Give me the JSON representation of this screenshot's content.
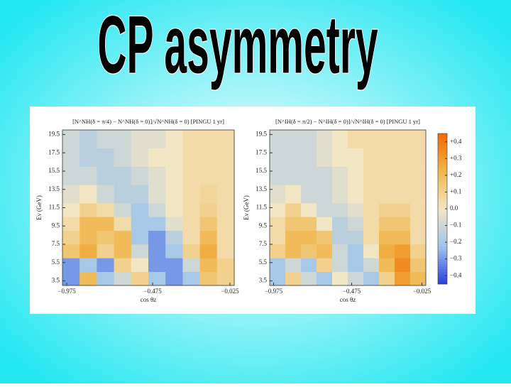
{
  "slide_title": "CP asymmetry",
  "chart_data": [
    {
      "type": "heatmap",
      "title": "[N^NH(δ = π/4) − N^NH(δ = 0)]/√N^NH(δ = 0)  [PINGU 1 yr]",
      "xlabel": "cos θz",
      "ylabel": "Eν (GeV)",
      "xlim": [
        -1,
        0
      ],
      "ylim": [
        3,
        20
      ],
      "xticks": [
        {
          "value": -0.975,
          "label": "−0.975"
        },
        {
          "value": -0.475,
          "label": "−0.475"
        },
        {
          "value": -0.025,
          "label": "−0.025"
        }
      ],
      "yticks": [
        3.5,
        5.5,
        7.5,
        9.5,
        11.5,
        13.5,
        15.5,
        17.5,
        19.5
      ],
      "xbins": [
        -1,
        -0.9,
        -0.8,
        -0.7,
        -0.6,
        -0.5,
        -0.4,
        -0.3,
        -0.2,
        -0.1,
        0
      ],
      "ybins": [
        3,
        4.5,
        6,
        7.5,
        9,
        10.5,
        12,
        14,
        16,
        18,
        20
      ],
      "z": [
        [
          -0.3,
          0.2,
          -0.2,
          -0.1,
          0.1,
          -0.2,
          -0.3,
          -0.2,
          0.15,
          0.1
        ],
        [
          -0.3,
          -0.2,
          -0.3,
          0.1,
          0.0,
          -0.3,
          -0.3,
          -0.1,
          0.2,
          0.1
        ],
        [
          0.15,
          0.25,
          0.1,
          0.2,
          -0.1,
          -0.3,
          -0.2,
          0.1,
          0.25,
          0.05
        ],
        [
          0.1,
          0.2,
          0.15,
          0.2,
          -0.2,
          -0.3,
          -0.15,
          0.05,
          0.2,
          0.05
        ],
        [
          0.05,
          0.2,
          0.2,
          0.05,
          -0.2,
          -0.2,
          -0.05,
          0.05,
          0.15,
          0.05
        ],
        [
          0.0,
          0.1,
          0.05,
          -0.1,
          -0.2,
          -0.1,
          0.0,
          0.05,
          0.1,
          0.05
        ],
        [
          -0.05,
          0.0,
          -0.1,
          -0.15,
          -0.15,
          -0.05,
          0.0,
          0.05,
          0.08,
          0.05
        ],
        [
          -0.1,
          -0.1,
          -0.15,
          -0.15,
          -0.1,
          -0.05,
          0.0,
          0.05,
          0.05,
          0.05
        ],
        [
          -0.1,
          -0.15,
          -0.15,
          -0.1,
          -0.05,
          0.0,
          0.0,
          0.05,
          0.05,
          0.05
        ],
        [
          -0.1,
          -0.15,
          -0.1,
          -0.1,
          -0.05,
          -0.05,
          0.0,
          0.05,
          0.05,
          0.05
        ]
      ]
    },
    {
      "type": "heatmap",
      "title": "[N^IH(δ = π/2) − N^IH(δ = 0)]/√N^IH(δ = 0)  [PINGU 1 yr]",
      "xlabel": "cos θz",
      "ylabel": "Eν (GeV)",
      "xlim": [
        -1,
        0
      ],
      "ylim": [
        3,
        20
      ],
      "xticks": [
        {
          "value": -0.975,
          "label": "−0.975"
        },
        {
          "value": -0.475,
          "label": "−0.475"
        },
        {
          "value": -0.025,
          "label": "−0.025"
        }
      ],
      "yticks": [
        3.5,
        5.5,
        7.5,
        9.5,
        11.5,
        13.5,
        15.5,
        17.5,
        19.5
      ],
      "xbins": [
        -1,
        -0.9,
        -0.8,
        -0.7,
        -0.6,
        -0.5,
        -0.4,
        -0.3,
        -0.2,
        -0.1,
        0
      ],
      "ybins": [
        3,
        4.5,
        6,
        7.5,
        9,
        10.5,
        12,
        14,
        16,
        18,
        20
      ],
      "z": [
        [
          -0.2,
          0.1,
          -0.1,
          -0.2,
          0.0,
          -0.1,
          -0.2,
          0.1,
          0.3,
          0.2
        ],
        [
          -0.2,
          -0.1,
          -0.2,
          0.1,
          -0.1,
          -0.2,
          -0.1,
          0.2,
          0.35,
          0.15
        ],
        [
          0.1,
          0.2,
          0.15,
          0.2,
          -0.1,
          -0.2,
          0.0,
          0.25,
          0.3,
          0.1
        ],
        [
          0.05,
          0.2,
          0.2,
          0.15,
          -0.15,
          -0.15,
          0.05,
          0.2,
          0.2,
          0.05
        ],
        [
          0.05,
          0.15,
          0.15,
          0.0,
          -0.15,
          -0.1,
          0.05,
          0.15,
          0.15,
          0.05
        ],
        [
          0.0,
          0.1,
          0.0,
          -0.1,
          -0.1,
          -0.05,
          0.05,
          0.1,
          0.1,
          0.05
        ],
        [
          -0.05,
          0.0,
          -0.1,
          -0.1,
          -0.05,
          0.0,
          0.05,
          0.05,
          0.05,
          0.05
        ],
        [
          -0.1,
          -0.1,
          -0.1,
          -0.1,
          -0.05,
          0.0,
          0.05,
          0.05,
          0.05,
          0.05
        ],
        [
          -0.1,
          -0.1,
          -0.1,
          -0.05,
          0.0,
          0.0,
          0.05,
          0.05,
          0.05,
          0.05
        ],
        [
          -0.1,
          -0.1,
          -0.1,
          -0.05,
          0.0,
          0.05,
          0.05,
          0.05,
          0.05,
          0.05
        ]
      ]
    }
  ],
  "colorbar": {
    "zlim": [
      -0.45,
      0.45
    ],
    "colors": [
      "#2a3fe0",
      "#9ec4ea",
      "#f3e6c4",
      "#f0b64a",
      "#f06a00"
    ],
    "ticks": [
      {
        "value": 0.4,
        "label": "+0.4"
      },
      {
        "value": 0.3,
        "label": "+0.3"
      },
      {
        "value": 0.2,
        "label": "+0.2"
      },
      {
        "value": 0.1,
        "label": "+0.1"
      },
      {
        "value": 0,
        "label": "0.0"
      },
      {
        "value": -0.1,
        "label": "−0.1"
      },
      {
        "value": -0.2,
        "label": "−0.2"
      },
      {
        "value": -0.3,
        "label": "−0.3"
      },
      {
        "value": -0.4,
        "label": "−0.4"
      }
    ]
  }
}
